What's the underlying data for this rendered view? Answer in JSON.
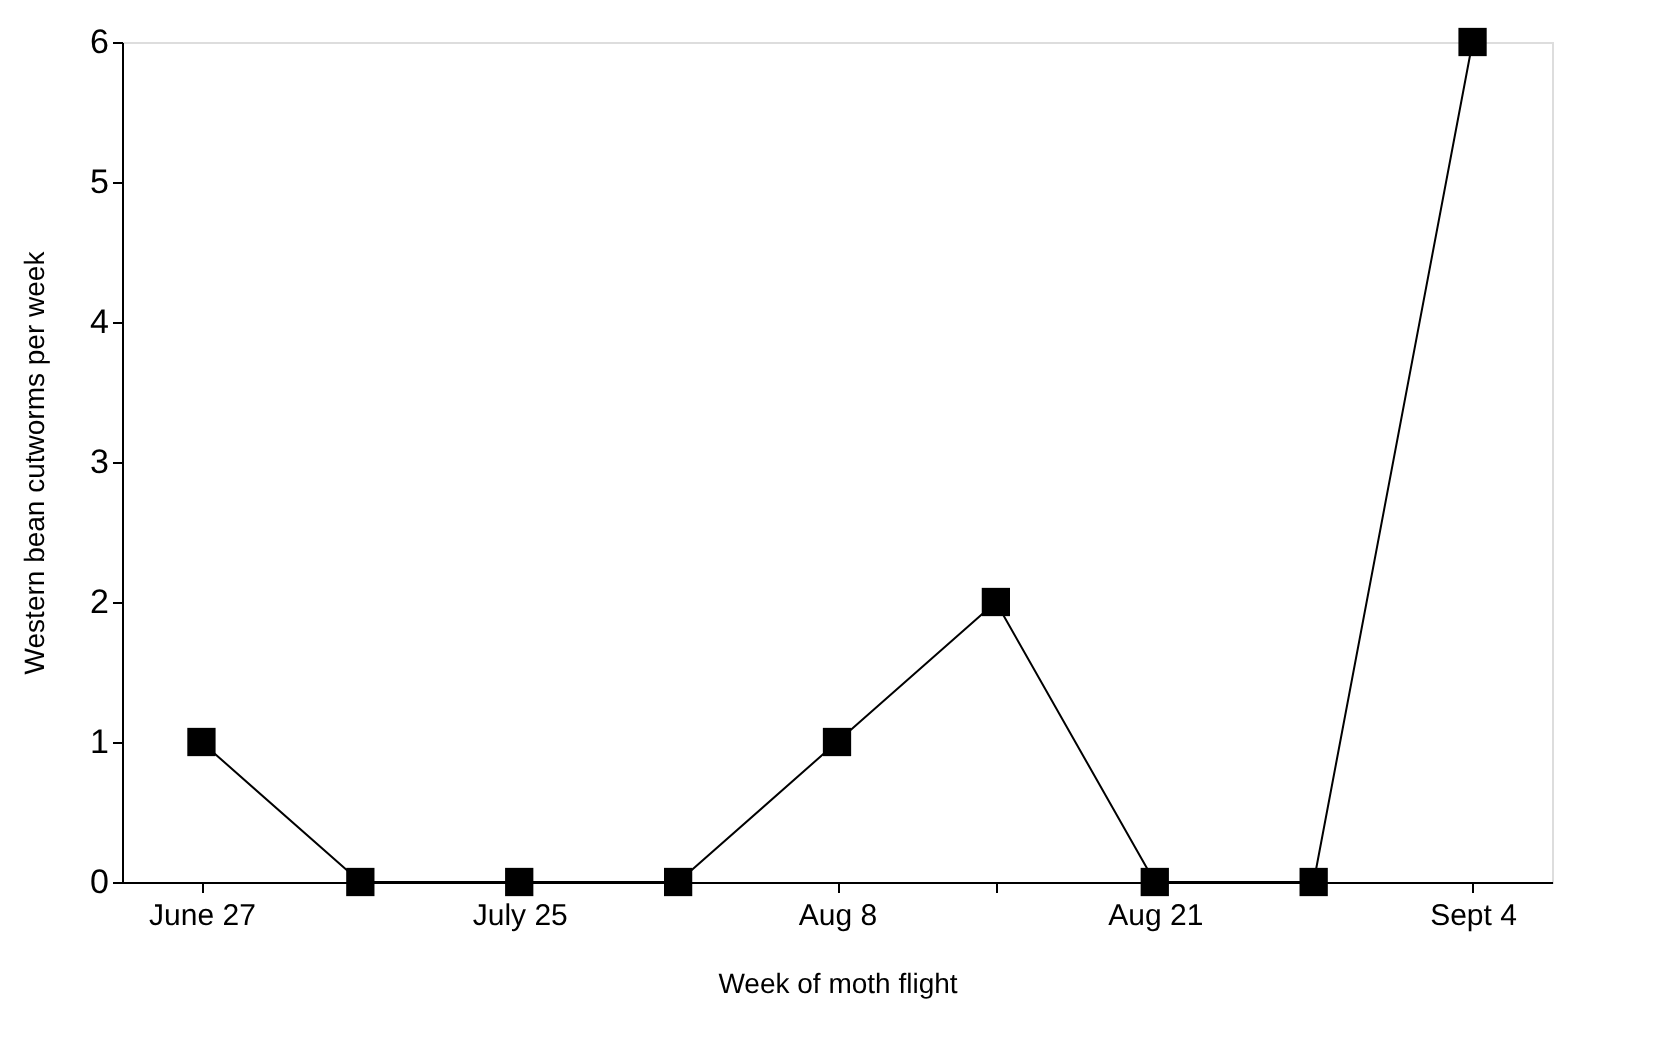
{
  "chart_data": {
    "type": "line",
    "xlabel": "Week of moth flight",
    "ylabel": "Western bean cutworms per week",
    "categories": [
      "June 27",
      null,
      "July 25",
      null,
      "Aug 8",
      null,
      "Aug 21",
      null,
      "Sept 4"
    ],
    "series": [
      {
        "color": "#000000",
        "values": [
          1,
          0,
          0,
          0,
          1,
          2,
          0,
          0,
          6
        ]
      }
    ],
    "ylim": [
      0,
      6
    ],
    "yticks": [
      0,
      1,
      2,
      3,
      4,
      5,
      6
    ],
    "grid": false,
    "marker": "square",
    "line_style": "solid"
  }
}
